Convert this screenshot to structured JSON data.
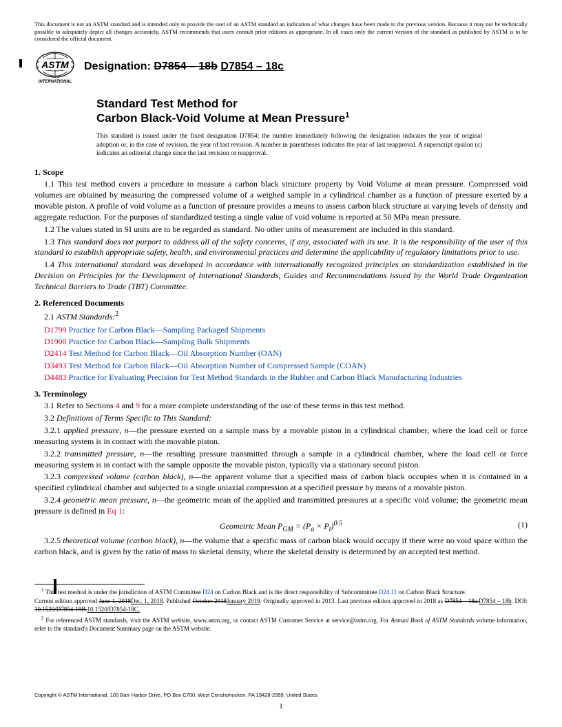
{
  "disclaimer": "This document is not an ASTM standard and is intended only to provide the user of an ASTM standard an indication of what changes have been made to the previous version. Because it may not be technically possible to adequately depict all changes accurately, ASTM recommends that users consult prior editions as appropriate. In all cases only the current version of the standard as published by ASTM is to be considered the official document.",
  "logo_text_top": "ASTM",
  "logo_text_bottom": "INTERNATIONAL",
  "designation_label": "Designation: ",
  "designation_old": "D7854 – 18b",
  "designation_new": "D7854 – 18c",
  "title_line1": "Standard Test Method for",
  "title_line2": "Carbon Black-Void Volume at Mean Pressure",
  "title_sup": "1",
  "issuance": "This standard is issued under the fixed designation D7854; the number immediately following the designation indicates the year of original adoption or, in the case of revision, the year of last revision. A number in parentheses indicates the year of last reapproval. A superscript epsilon (ε) indicates an editorial change since the last revision or reapproval.",
  "s1_head": "1. Scope",
  "s1_1": "1.1 This test method covers a procedure to measure a carbon black structure property by Void Volume at mean pressure. Compressed void volumes are obtained by measuring the compressed volume of a weighed sample in a cylindrical chamber as a function of pressure exerted by a movable piston. A profile of void volume as a function of pressure provides a means to assess carbon black structure at varying levels of density and aggregate reduction. For the purposes of standardized testing a single value of void volume is reported at 50 MPa mean pressure.",
  "s1_2": "1.2 The values stated in SI units are to be regarded as standard. No other units of measurement are included in this standard.",
  "s1_3": "1.3 This standard does not purport to address all of the safety concerns, if any, associated with its use. It is the responsibility of the user of this standard to establish appropriate safety, health, and environmental practices and determine the applicability of regulatory limitations prior to use.",
  "s1_4": "1.4 This international standard was developed in accordance with internationally recognized principles on standardization established in the Decision on Principles for the Development of International Standards, Guides and Recommendations issued by the World Trade Organization Technical Barriers to Trade (TBT) Committee.",
  "s2_head": "2. Referenced Documents",
  "s2_1": "2.1 ASTM Standards:",
  "s2_1_sup": "2",
  "refs": [
    {
      "code": "D1799",
      "text": " Practice for Carbon Black—Sampling Packaged Shipments"
    },
    {
      "code": "D1900",
      "text": " Practice for Carbon Black—Sampling Bulk Shipments"
    },
    {
      "code": "D2414",
      "text": " Test Method for Carbon Black—Oil Absorption Number (OAN)"
    },
    {
      "code": "D3493",
      "text": " Test Method for Carbon Black—Oil Absorption Number of Compressed Sample (COAN)"
    },
    {
      "code": "D4483",
      "text": " Practice for Evaluating Precision for Test Method Standards in the Rubber and Carbon Black Manufacturing Industries"
    }
  ],
  "s3_head": "3. Terminology",
  "s3_1_pre": "3.1 Refer to Sections ",
  "s3_1_link1": "4",
  "s3_1_mid": " and ",
  "s3_1_link2": "9",
  "s3_1_post": " for a more complete understanding of the use of these terms in this test method.",
  "s3_2": "3.2 Definitions of Terms Specific to This Standard:",
  "s3_2_1_term": "applied pressure, n",
  "s3_2_1_def": "—the pressure exerted on a sample mass by a movable piston in a cylindrical chamber, where the load cell or force measuring system is in contact with the movable piston.",
  "s3_2_2_term": "transmitted pressure, n",
  "s3_2_2_def": "—the resulting pressure transmitted through a sample in a cylindrical chamber, where the load cell or force measuring system is in contact with the sample opposite the movable piston, typically via a stationary second piston.",
  "s3_2_3_term": "compressed volume (carbon black), n",
  "s3_2_3_def": "—the apparent volume that a specified mass of carbon black occupies when it is contained in a specified cylindrical chamber and subjected to a single uniaxial compression at a specified pressure by means of a movable piston.",
  "s3_2_4_term": "geometric mean pressure, n",
  "s3_2_4_def_pre": "—the geometric mean of the applied and transmitted pressures at a specific void volume; the geometric mean pressure is defined in ",
  "s3_2_4_link": "Eq 1",
  "s3_2_4_def_post": ":",
  "equation": "Geometric Mean P",
  "eq_sub": "GM",
  "eq_rhs": " = (P",
  "eq_sub_a": "a",
  "eq_mid": "  × P",
  "eq_sub_t": "t",
  "eq_end": ")",
  "eq_sup": "0.5",
  "eq_num": "(1)",
  "s3_2_5_term": "theoretical volume (carbon black), n",
  "s3_2_5_def": "—the volume that a specific mass of carbon black would occupy if there were no void space within the carbon black, and is given by the ratio of mass to skeletal density, where the skeletal density is determined by an accepted test method.",
  "fn1_pre": " This test method is under the jurisdiction of ASTM Committee ",
  "fn1_link1": "D24",
  "fn1_mid1": " on Carbon Black and is the direct responsibility of Subcommittee ",
  "fn1_link2": "D24.11",
  "fn1_mid2": " on Carbon Black Structure.",
  "fn1_line2_pre": "Current edition approved ",
  "fn1_old_date": "June 1, 2018",
  "fn1_new_date": "Dec. 1, 2018",
  "fn1_pub": ". Published ",
  "fn1_old_pub": "October 2018",
  "fn1_new_pub": "January 2019",
  "fn1_orig": ". Originally approved in 2013. Last previous edition approved in 2018 as ",
  "fn1_old_ed": "D7854 – 18a.",
  "fn1_new_ed": "D7854 – 18b",
  "fn1_doi": ". DOI: ",
  "fn1_old_doi": "10.1520/D7854-18B.",
  "fn1_new_doi": "10.1520/D7854-18C.",
  "fn2": " For referenced ASTM standards, visit the ASTM website, www.astm.org, or contact ASTM Customer Service at service@astm.org. For Annual Book of ASTM Standards volume information, refer to the standard's Document Summary page on the ASTM website.",
  "fn2_italic": "Annual Book of ASTM Standards",
  "copyright": "Copyright © ASTM International, 100 Barr Harbor Drive, PO Box C700, West Conshohocken, PA 19428-2959. United States",
  "pagenum": "1"
}
